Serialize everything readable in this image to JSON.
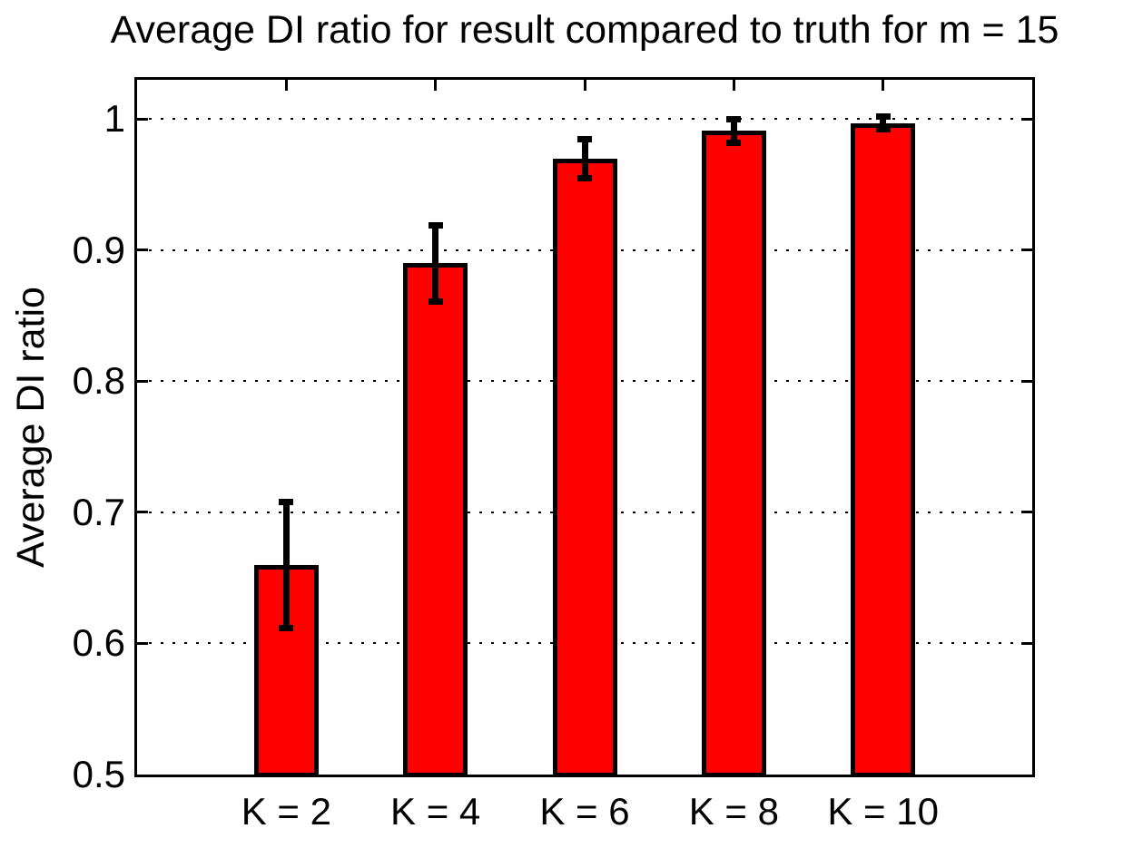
{
  "chart_data": {
    "type": "bar",
    "title": "Average DI ratio for result compared to truth for m = 15",
    "xlabel": "",
    "ylabel": "Average DI ratio",
    "categories": [
      "K = 2",
      "K = 4",
      "K = 6",
      "K = 8",
      "K = 10"
    ],
    "values": [
      0.66,
      0.89,
      0.97,
      0.991,
      0.997
    ],
    "error_bars": [
      0.048,
      0.029,
      0.015,
      0.009,
      0.005
    ],
    "ylim": [
      0.5,
      1.03
    ],
    "yticks": [
      0.5,
      0.6,
      0.7,
      0.8,
      0.9,
      1
    ],
    "ytick_labels": [
      "0.5",
      "0.6",
      "0.7",
      "0.8",
      "0.9",
      "1"
    ],
    "grid": "horizontal-dotted",
    "legend": "none",
    "bar_color": "#ff0000",
    "bar_edge_color": "#000000",
    "error_color": "#000000",
    "axis_color": "#000000",
    "background_color": "#ffffff"
  }
}
